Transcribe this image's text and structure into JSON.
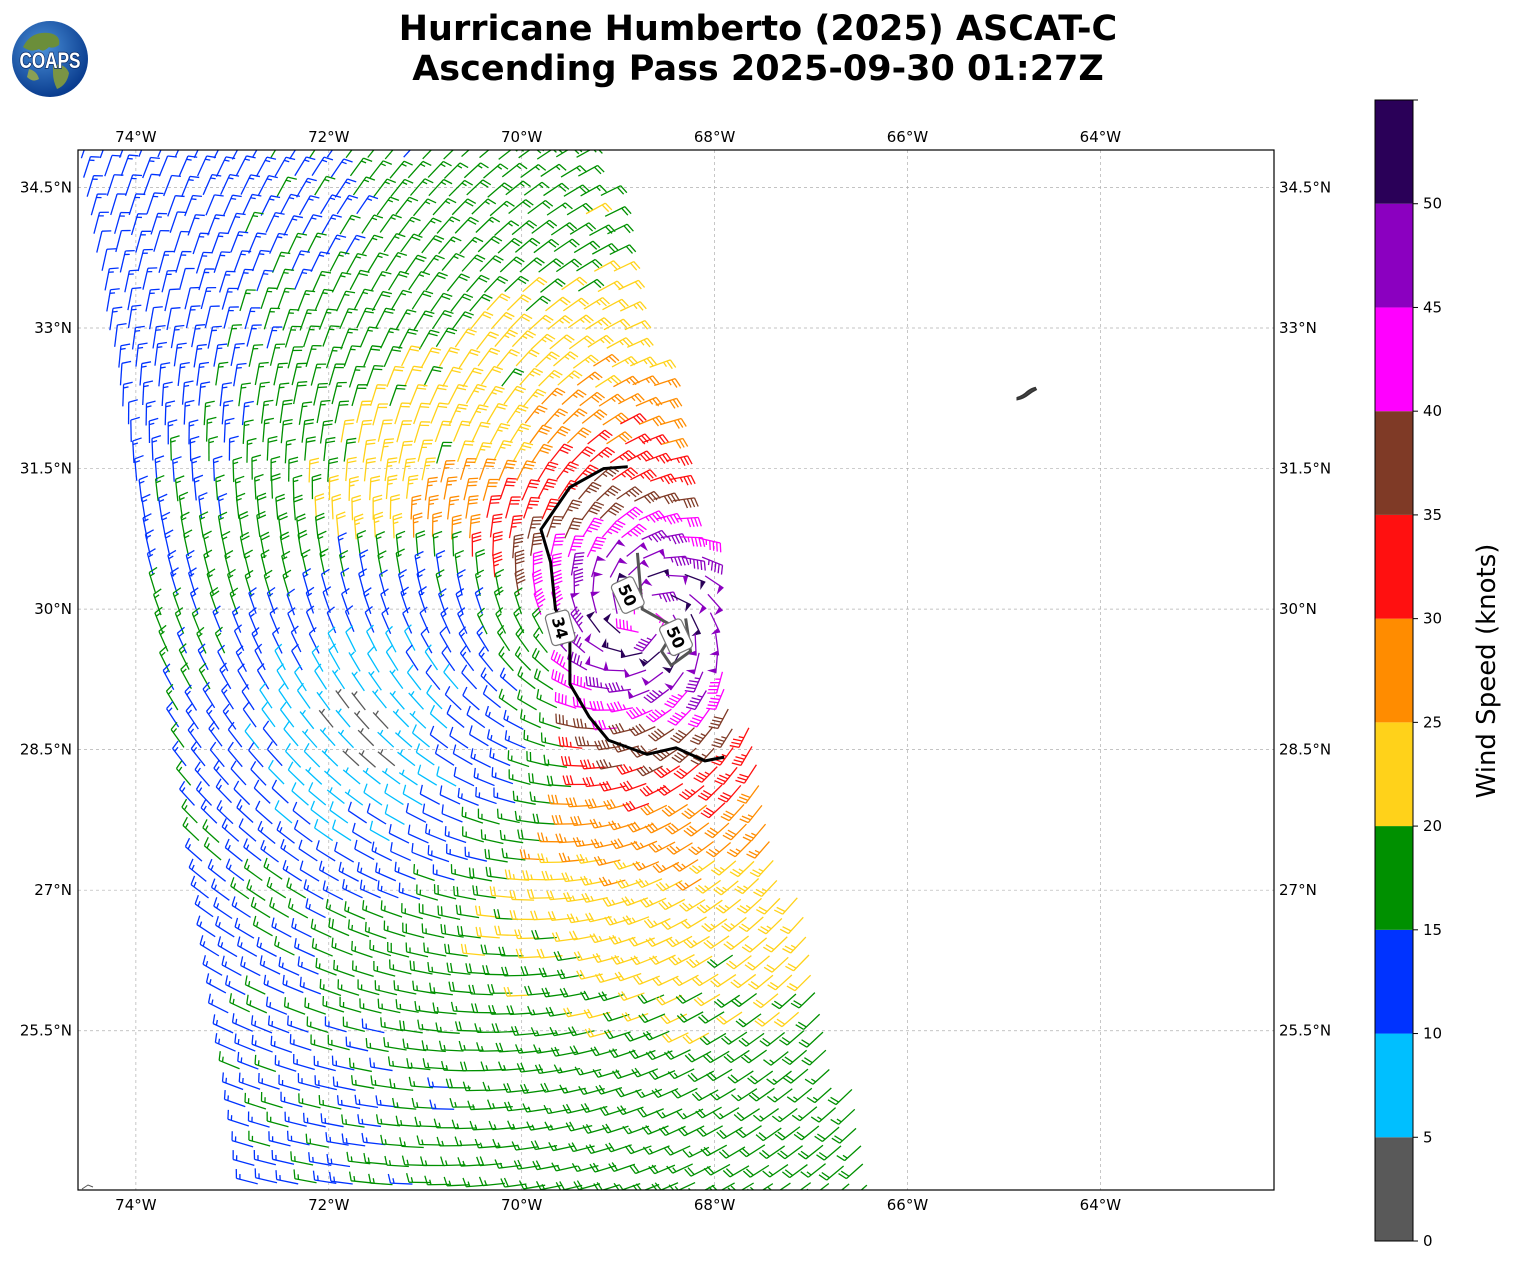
{
  "title": {
    "line1": "Hurricane Humberto (2025) ASCAT-C",
    "line2": "Ascending Pass 2025-09-30 01:27Z"
  },
  "logo": {
    "text": "COAPS",
    "icon": "globe-logo-icon"
  },
  "map": {
    "extent": {
      "lon": [
        -74.6,
        -62.2
      ],
      "lat": [
        23.8,
        34.9
      ]
    },
    "lon_ticks": [
      "74°W",
      "72°W",
      "70°W",
      "68°W",
      "66°W",
      "64°W"
    ],
    "lon_values": [
      -74,
      -72,
      -70,
      -68,
      -66,
      -64
    ],
    "lat_ticks": [
      "34.5°N",
      "33°N",
      "31.5°N",
      "30°N",
      "28.5°N",
      "27°N",
      "25.5°N"
    ],
    "lat_values": [
      34.5,
      33,
      31.5,
      30,
      28.5,
      27,
      25.5
    ],
    "gridlines": true,
    "storm_center": {
      "lon": -68.7,
      "lat": 29.9
    },
    "contour_labels": [
      {
        "label": "34",
        "lon": -69.6,
        "lat": 29.8
      },
      {
        "label": "50",
        "lon": -68.9,
        "lat": 30.15
      },
      {
        "label": "50",
        "lon": -68.4,
        "lat": 29.7
      }
    ],
    "contour_34kt": [
      [
        -68.9,
        31.52
      ],
      [
        -69.15,
        31.5
      ],
      [
        -69.5,
        31.3
      ],
      [
        -69.8,
        30.85
      ],
      [
        -69.7,
        30.5
      ],
      [
        -69.65,
        30.0
      ],
      [
        -69.5,
        29.7
      ],
      [
        -69.5,
        29.2
      ],
      [
        -69.3,
        28.85
      ],
      [
        -69.1,
        28.6
      ],
      [
        -68.7,
        28.45
      ],
      [
        -68.4,
        28.52
      ],
      [
        -68.1,
        28.38
      ],
      [
        -67.9,
        28.42
      ]
    ],
    "contour_50kt": [
      [
        -68.3,
        29.9
      ],
      [
        -68.25,
        29.55
      ],
      [
        -68.45,
        29.4
      ],
      [
        -68.55,
        29.55
      ],
      [
        -68.4,
        29.8
      ],
      [
        -68.75,
        30.0
      ],
      [
        -68.8,
        30.6
      ]
    ],
    "bermuda": {
      "lon": -64.8,
      "lat": 32.3
    }
  },
  "colorbar": {
    "label": "Wind Speed (knots)",
    "ticks": [
      "0",
      "5",
      "10",
      "15",
      "20",
      "25",
      "30",
      "35",
      "40",
      "45",
      "50"
    ],
    "bins": [
      {
        "min": 0,
        "max": 5,
        "color": "#595959"
      },
      {
        "min": 5,
        "max": 10,
        "color": "#00bfff"
      },
      {
        "min": 10,
        "max": 15,
        "color": "#0033ff"
      },
      {
        "min": 15,
        "max": 20,
        "color": "#009000"
      },
      {
        "min": 20,
        "max": 25,
        "color": "#ffd21a"
      },
      {
        "min": 25,
        "max": 30,
        "color": "#ff8c00"
      },
      {
        "min": 30,
        "max": 35,
        "color": "#ff1010"
      },
      {
        "min": 35,
        "max": 40,
        "color": "#7f3a26"
      },
      {
        "min": 40,
        "max": 45,
        "color": "#ff00ff"
      },
      {
        "min": 45,
        "max": 50,
        "color": "#8b00c0"
      },
      {
        "min": 50,
        "max": 55,
        "color": "#2a0058"
      }
    ]
  }
}
